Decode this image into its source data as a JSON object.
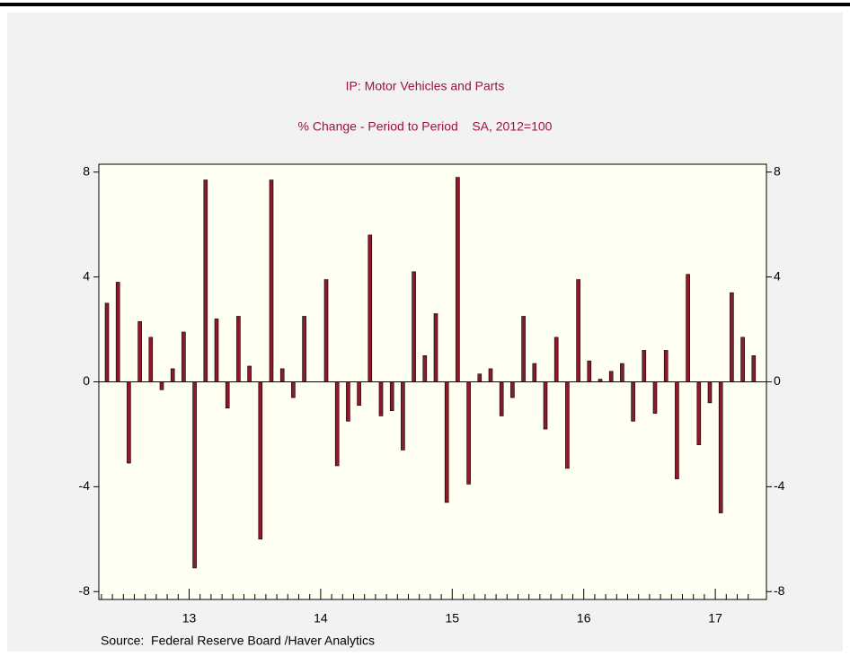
{
  "chart_data": {
    "type": "bar",
    "title": "IP: Motor Vehicles and Parts",
    "subtitle": "% Change - Period to Period    SA, 2012=100",
    "source": "Source:  Federal Reserve Board /Haver Analytics",
    "categories": [
      null,
      null,
      null,
      null,
      null,
      null,
      null,
      null,
      "13",
      null,
      null,
      null,
      null,
      null,
      null,
      null,
      null,
      null,
      null,
      null,
      "14",
      null,
      null,
      null,
      null,
      null,
      null,
      null,
      null,
      null,
      null,
      null,
      "15",
      null,
      null,
      null,
      null,
      null,
      null,
      null,
      null,
      null,
      null,
      null,
      "16",
      null,
      null,
      null,
      null,
      null,
      null,
      null,
      null,
      null,
      null,
      null,
      "17",
      null,
      null,
      null
    ],
    "values": [
      3.0,
      3.8,
      -3.1,
      2.3,
      1.7,
      -0.3,
      0.5,
      1.9,
      -7.1,
      7.7,
      2.4,
      -1.0,
      2.5,
      0.6,
      -6.0,
      7.7,
      0.5,
      -0.6,
      2.5,
      0,
      3.9,
      -3.2,
      -1.5,
      -0.9,
      5.6,
      -1.3,
      -1.1,
      -2.6,
      4.2,
      1.0,
      2.6,
      -4.6,
      7.8,
      -3.9,
      0.3,
      0.5,
      -1.3,
      -0.6,
      2.5,
      0.7,
      -1.8,
      1.7,
      -3.3,
      3.9,
      0.8,
      0.1,
      0.4,
      0.7,
      -1.5,
      1.2,
      -1.2,
      1.2,
      -3.7,
      4.1,
      -2.4,
      -0.8,
      -5.0,
      3.4,
      1.7,
      1.0
    ],
    "color": "#8b1a2a",
    "ylim": [
      -8.3,
      8.3
    ],
    "yticks": [
      -8,
      -4,
      0,
      4,
      8
    ],
    "y2ticks": [
      -8,
      -4,
      0,
      4,
      8
    ],
    "grid": false
  }
}
